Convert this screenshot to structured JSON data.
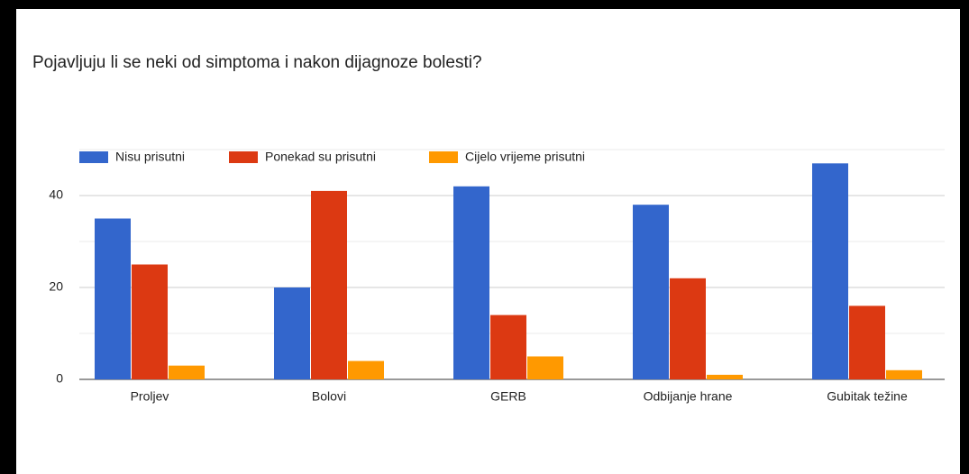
{
  "chart_data": {
    "type": "bar",
    "title": "Pojavljuju li se neki od simptoma i nakon dijagnoze bolesti?",
    "categories": [
      "Proljev",
      "Bolovi",
      "GERB",
      "Odbijanje hrane",
      "Gubitak težine"
    ],
    "series": [
      {
        "name": "Nisu prisutni",
        "color": "#3366cc",
        "values": [
          35,
          20,
          42,
          38,
          47
        ]
      },
      {
        "name": "Ponekad su prisutni",
        "color": "#dc3912",
        "values": [
          25,
          41,
          14,
          22,
          16
        ]
      },
      {
        "name": "Cijelo vrijeme prisutni",
        "color": "#ff9900",
        "values": [
          3,
          4,
          5,
          1,
          2
        ]
      }
    ],
    "ylim": [
      0,
      50
    ],
    "yticks": [
      0,
      20,
      40
    ],
    "minor_yticks": [
      10,
      30,
      50
    ],
    "grid": true,
    "legend": "top"
  }
}
